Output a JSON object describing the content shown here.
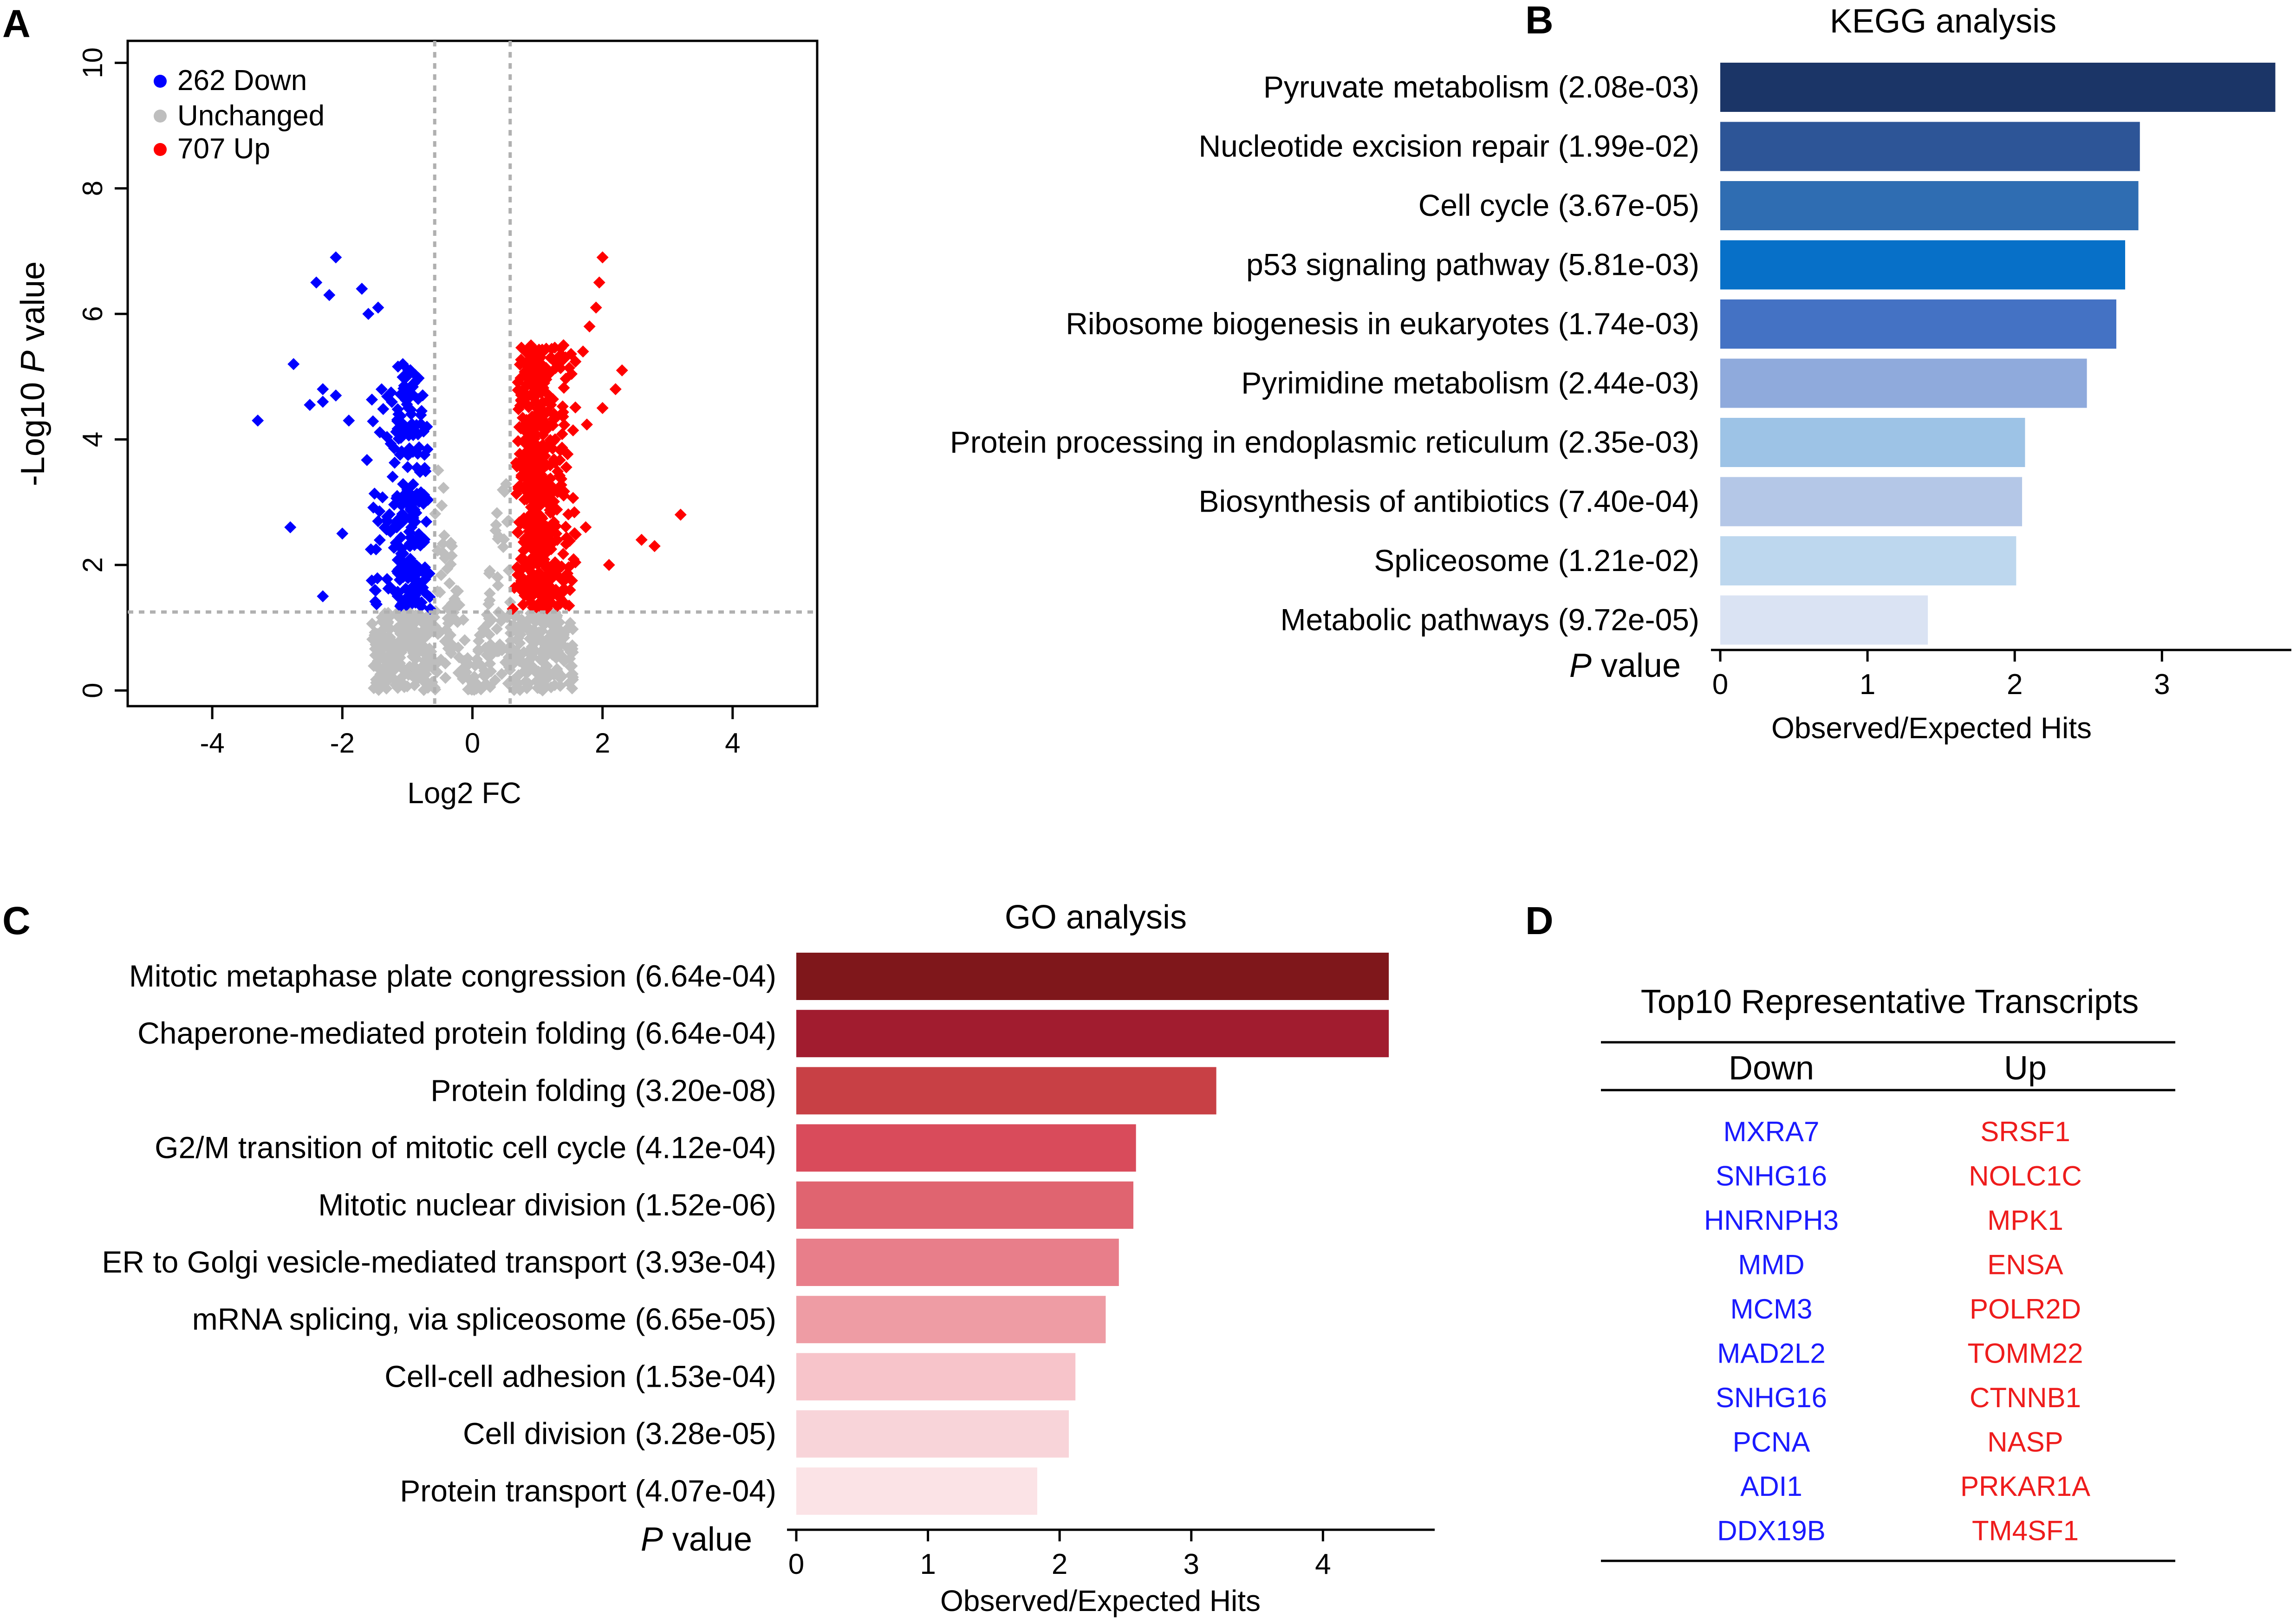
{
  "panels": {
    "A": "A",
    "B": "B",
    "C": "C",
    "D": "D"
  },
  "chart_data": [
    {
      "id": "volcano",
      "type": "scatter",
      "title": "",
      "xlabel": "Log2 FC",
      "ylabel_prefix": "-Log10 ",
      "ylabel_italic": "P",
      "ylabel_suffix": " value",
      "xlim": [
        -5.3,
        5.3
      ],
      "ylim": [
        -0.25,
        10.35
      ],
      "xticks": [
        -4,
        -2,
        0,
        2,
        4
      ],
      "yticks": [
        0,
        2,
        4,
        6,
        8,
        10
      ],
      "thresholds": {
        "x": [
          -0.58,
          0.58
        ],
        "y": 1.25
      },
      "legend": [
        {
          "label": "262 Down",
          "color": "#0000ff"
        },
        {
          "label": "Unchanged",
          "color": "#bebebe"
        },
        {
          "label": "707 Up",
          "color": "#ff0000"
        }
      ],
      "series": [
        {
          "name": "Down",
          "color": "#0000ff",
          "count": 262,
          "highlights": [
            [
              -2.1,
              6.9
            ],
            [
              -2.4,
              6.5
            ],
            [
              -2.2,
              6.3
            ],
            [
              -1.7,
              6.4
            ],
            [
              -1.45,
              6.1
            ],
            [
              -1.6,
              6.0
            ],
            [
              -2.75,
              5.2
            ],
            [
              -2.5,
              4.55
            ],
            [
              -3.3,
              4.3
            ],
            [
              -2.3,
              4.6
            ],
            [
              -2.3,
              4.8
            ],
            [
              -2.1,
              4.7
            ],
            [
              -1.9,
              4.3
            ],
            [
              -2.8,
              2.6
            ],
            [
              -2.3,
              1.5
            ],
            [
              -2.0,
              2.5
            ],
            [
              -1.5,
              1.6
            ],
            [
              -0.65,
              1.3
            ]
          ]
        },
        {
          "name": "Unchanged",
          "color": "#bebebe",
          "count": null,
          "highlights": []
        },
        {
          "name": "Up",
          "color": "#ff0000",
          "count": 707,
          "highlights": [
            [
              2.0,
              6.9
            ],
            [
              1.95,
              6.5
            ],
            [
              1.9,
              6.1
            ],
            [
              1.8,
              5.8
            ],
            [
              1.7,
              5.4
            ],
            [
              1.4,
              5.5
            ],
            [
              2.3,
              5.1
            ],
            [
              2.2,
              4.8
            ],
            [
              2.0,
              4.5
            ],
            [
              3.2,
              2.8
            ],
            [
              2.8,
              2.3
            ],
            [
              2.6,
              2.4
            ],
            [
              2.1,
              2.0
            ],
            [
              1.5,
              1.6
            ],
            [
              0.62,
              1.3
            ],
            [
              1.2,
              5.3
            ]
          ]
        }
      ]
    },
    {
      "id": "kegg",
      "type": "bar",
      "orientation": "horizontal",
      "title": "KEGG analysis",
      "xlabel": "Observed/Expected Hits",
      "pvalue_header_italic": "P",
      "pvalue_header_suffix": " value",
      "xlim": [
        0,
        3.8
      ],
      "xticks": [
        0,
        1,
        2,
        3
      ],
      "categories": [
        {
          "label": "Pyruvate metabolism  (2.08e-03)",
          "value": 3.77,
          "color": "#1b3567"
        },
        {
          "label": "Nucleotide excision repair (1.99e-02)",
          "value": 2.85,
          "color": "#2d5597"
        },
        {
          "label": "Cell cycle (3.67e-05)",
          "value": 2.84,
          "color": "#2f6db2"
        },
        {
          "label": "p53 signaling pathway (5.81e-03)",
          "value": 2.75,
          "color": "#0770c8"
        },
        {
          "label": "Ribosome biogenesis in eukaryotes (1.74e-03)",
          "value": 2.69,
          "color": "#4472c4"
        },
        {
          "label": "Pyrimidine metabolism  (2.44e-03)",
          "value": 2.49,
          "color": "#8faadc"
        },
        {
          "label": "Protein processing in endoplasmic  reticulum  (2.35e-03)",
          "value": 2.07,
          "color": "#9dc3e6"
        },
        {
          "label": "Biosynthesis of antibiotics (7.40e-04)",
          "value": 2.05,
          "color": "#b4c7e7"
        },
        {
          "label": "Spliceosome  (1.21e-02)",
          "value": 2.01,
          "color": "#bdd7ee"
        },
        {
          "label": "Metabolic pathways (9.72e-05)",
          "value": 1.41,
          "color": "#dae3f3"
        }
      ]
    },
    {
      "id": "go",
      "type": "bar",
      "orientation": "horizontal",
      "title": "GO analysis",
      "xlabel": "Observed/Expected Hits",
      "pvalue_header_italic": "P",
      "pvalue_header_suffix": " value",
      "xlim": [
        0,
        4.75
      ],
      "xticks": [
        0,
        1,
        2,
        3,
        4
      ],
      "categories": [
        {
          "label": "Mitotic metaphase plate congression (6.64e-04)",
          "value": 4.5,
          "color": "#7f171b"
        },
        {
          "label": "Chaperone-mediated  protein folding  (6.64e-04)",
          "value": 4.5,
          "color": "#a11c2f"
        },
        {
          "label": "Protein folding  (3.20e-08)",
          "value": 3.19,
          "color": "#c84045"
        },
        {
          "label": "G2/M transition of mitotic cell cycle (4.12e-04)",
          "value": 2.58,
          "color": "#d94b5b"
        },
        {
          "label": "Mitotic nuclear division (1.52e-06)",
          "value": 2.56,
          "color": "#e06470"
        },
        {
          "label": "ER to Golgi vesicle-mediated transport  (3.93e-04)",
          "value": 2.45,
          "color": "#e87e8a"
        },
        {
          "label": "mRNA splicing, via spliceosome (6.65e-05)",
          "value": 2.35,
          "color": "#ee9ca4"
        },
        {
          "label": "Cell-cell adhesion  (1.53e-04)",
          "value": 2.12,
          "color": "#f7c4ca"
        },
        {
          "label": "Cell division (3.28e-05)",
          "value": 2.07,
          "color": "#f8d4d9"
        },
        {
          "label": "Protein transport  (4.07e-04)",
          "value": 1.83,
          "color": "#fbe3e6"
        }
      ]
    },
    {
      "id": "transcripts",
      "type": "table",
      "title": "Top10 Representative Transcripts",
      "columns": [
        "Down",
        "Up"
      ],
      "down_color": "#1a1aff",
      "up_color": "#ee1c1c",
      "rows": [
        [
          "MXRA7",
          "SRSF1"
        ],
        [
          "SNHG16",
          "NOLC1C"
        ],
        [
          "HNRNPH3",
          "MPK1"
        ],
        [
          "MMD",
          "ENSA"
        ],
        [
          "MCM3",
          "POLR2D"
        ],
        [
          "MAD2L2",
          "TOMM22"
        ],
        [
          "SNHG16",
          "CTNNB1"
        ],
        [
          "PCNA",
          "NASP"
        ],
        [
          "ADI1",
          "PRKAR1A"
        ],
        [
          "DDX19B",
          "TM4SF1"
        ]
      ]
    }
  ]
}
